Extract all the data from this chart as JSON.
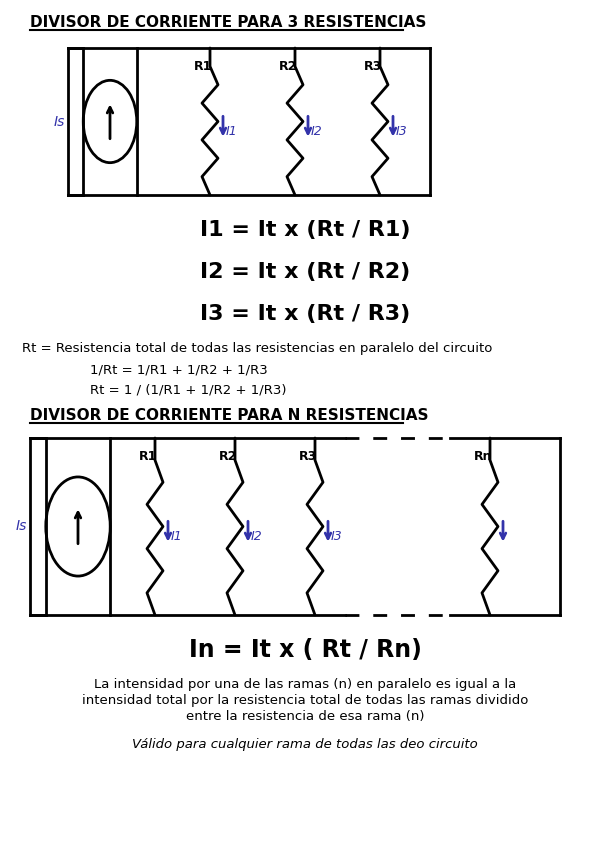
{
  "title1": "DIVISOR DE CORRIENTE PARA 3 RESISTENCIAS",
  "title2": "DIVISOR DE CORRIENTE PARA N RESISTENCIAS",
  "formula1": "I1 = It x (Rt / R1)",
  "formula2": "I2 = It x (Rt / R2)",
  "formula3": "I3 = It x (Rt / R3)",
  "formula_n": "In = It x ( Rt / Rn)",
  "rt_def": "Rt = Resistencia total de todas las resistencias en paralelo del circuito",
  "eq1": "1/Rt = 1/R1 + 1/R2 + 1/R3",
  "eq2": "Rt = 1 / (1/R1 + 1/R2 + 1/R3)",
  "desc1": "La intensidad por una de las ramas (n) en paralelo es igual a la",
  "desc2": "intensidad total por la resistencia total de todas las ramas dividido",
  "desc3": "entre la resistencia de esa rama (n)",
  "desc4": "Válido para cualquier rama de todas las deo circuito",
  "bg_color": "#ffffff",
  "line_color": "#000000",
  "blue_color": "#3333aa",
  "title_fontsize": 11,
  "formula_fontsize": 16,
  "small_fontsize": 9.5
}
